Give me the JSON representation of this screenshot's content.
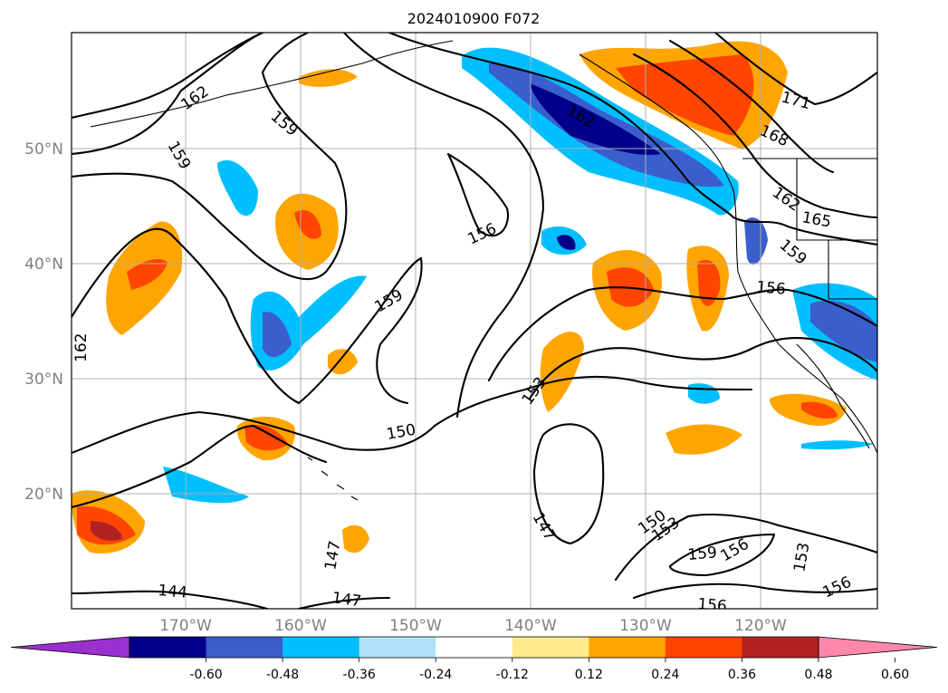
{
  "title": "2024010900 F072",
  "map": {
    "lat_labels": [
      "50°N",
      "40°N",
      "30°N",
      "20°N"
    ],
    "lon_labels": [
      "170°W",
      "160°W",
      "150°W",
      "140°W",
      "130°W",
      "120°W"
    ],
    "contour_labels": [
      "162",
      "159",
      "159",
      "156",
      "159",
      "162",
      "171",
      "168",
      "162",
      "165",
      "159",
      "156",
      "153",
      "150",
      "147",
      "150",
      "153",
      "159",
      "156",
      "153",
      "156",
      "144",
      "147",
      "147",
      "162"
    ]
  },
  "colorbar": {
    "ticks": [
      "-0.60",
      "-0.48",
      "-0.36",
      "-0.24",
      "-0.12",
      "0.12",
      "0.24",
      "0.36",
      "0.48",
      "0.60"
    ],
    "colors": [
      "#9b30d0",
      "#00008b",
      "#3a5fcd",
      "#00bfff",
      "#aee2f7",
      "#ffffff",
      "#ffeb8c",
      "#ffa500",
      "#ff4500",
      "#b22222",
      "#ff88aa"
    ]
  }
}
